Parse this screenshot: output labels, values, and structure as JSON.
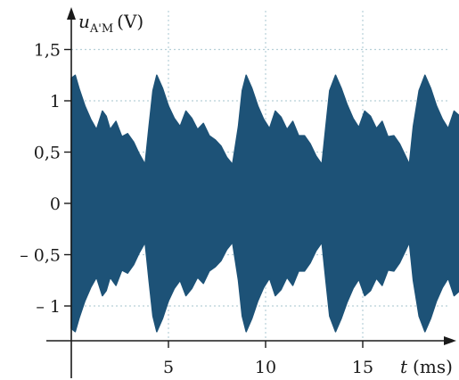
{
  "chart_data": {
    "type": "area",
    "description_kind": "amplitude-modulated signal envelope",
    "xlabel_var": "t",
    "xlabel_unit": "(ms)",
    "ylabel_var": "u",
    "ylabel_sub": "A'M",
    "ylabel_unit": "(V)",
    "xlim": [
      0,
      21
    ],
    "ylim": [
      -1.6,
      1.6
    ],
    "x_ticks": [
      {
        "value": 5,
        "label": "5"
      },
      {
        "value": 10,
        "label": "10"
      },
      {
        "value": 15,
        "label": "15"
      }
    ],
    "y_ticks": [
      {
        "value": 1.5,
        "label": "1,5"
      },
      {
        "value": 1,
        "label": "1"
      },
      {
        "value": 0.5,
        "label": "0,5"
      },
      {
        "value": 0,
        "label": "0"
      },
      {
        "value": -0.5,
        "label": "– 0,5"
      },
      {
        "value": -1,
        "label": "– 1"
      }
    ],
    "grid": true,
    "fill_color": "#1d5277",
    "envelope_upper": {
      "t": [
        0,
        0.2,
        0.4,
        0.7,
        1.0,
        1.3,
        1.6,
        1.8,
        2.0,
        2.3,
        2.6,
        2.9,
        3.2,
        3.5,
        3.8,
        4.0,
        4.2,
        4.4,
        4.7,
        5.0,
        5.3,
        5.6,
        5.9,
        6.2,
        6.5,
        6.8,
        7.1,
        7.4,
        7.7,
        8.0,
        8.3,
        8.6,
        8.8,
        9.0,
        9.3,
        9.6,
        9.9,
        10.2,
        10.5,
        10.8,
        11.1,
        11.4,
        11.7,
        12.0,
        12.3,
        12.6,
        12.9,
        13.1,
        13.3,
        13.6,
        13.9,
        14.2,
        14.5,
        14.8,
        15.1,
        15.4,
        15.7,
        16.0,
        16.3,
        16.6,
        16.9,
        17.2,
        17.4,
        17.6,
        17.9,
        18.2,
        18.5,
        18.8,
        19.1,
        19.4,
        19.7,
        20.0,
        20.3,
        20.6,
        20.9
      ],
      "u": [
        1.22,
        1.25,
        1.12,
        0.95,
        0.82,
        0.72,
        0.9,
        0.85,
        0.72,
        0.8,
        0.65,
        0.68,
        0.6,
        0.48,
        0.38,
        0.75,
        1.1,
        1.25,
        1.12,
        0.95,
        0.83,
        0.75,
        0.9,
        0.83,
        0.72,
        0.78,
        0.66,
        0.62,
        0.56,
        0.45,
        0.38,
        0.75,
        1.1,
        1.25,
        1.12,
        0.95,
        0.82,
        0.73,
        0.9,
        0.84,
        0.72,
        0.8,
        0.66,
        0.66,
        0.58,
        0.46,
        0.38,
        0.75,
        1.1,
        1.25,
        1.12,
        0.96,
        0.83,
        0.74,
        0.9,
        0.85,
        0.73,
        0.8,
        0.65,
        0.66,
        0.58,
        0.46,
        0.38,
        0.75,
        1.1,
        1.25,
        1.12,
        0.95,
        0.82,
        0.73,
        0.9,
        0.85,
        0.72,
        0.8,
        0.68
      ]
    }
  }
}
